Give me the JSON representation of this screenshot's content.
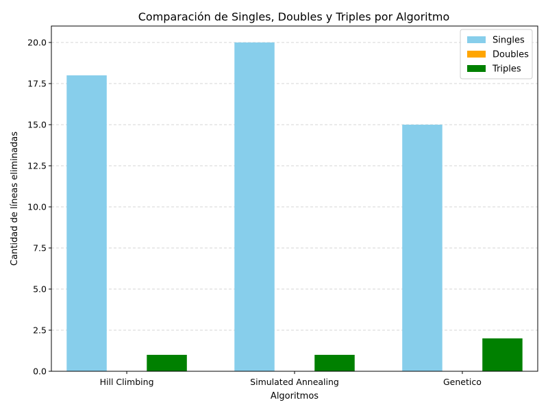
{
  "chart_data": {
    "type": "bar",
    "title": "Comparación de Singles, Doubles y Triples por Algoritmo",
    "xlabel": "Algoritmos",
    "ylabel": "Cantidad de líneas eliminadas",
    "categories": [
      "Hill Climbing",
      "Simulated Annealing",
      "Genetico"
    ],
    "series": [
      {
        "name": "Singles",
        "values": [
          18,
          20,
          15
        ],
        "color": "#87ceeb"
      },
      {
        "name": "Doubles",
        "values": [
          0,
          0,
          0
        ],
        "color": "#ffa500"
      },
      {
        "name": "Triples",
        "values": [
          1,
          1,
          2
        ],
        "color": "#008000"
      }
    ],
    "ylim": [
      0,
      21
    ],
    "yticks": [
      0.0,
      2.5,
      5.0,
      7.5,
      10.0,
      12.5,
      15.0,
      17.5,
      20.0
    ],
    "ytick_labels": [
      "0.0",
      "2.5",
      "5.0",
      "7.5",
      "10.0",
      "12.5",
      "15.0",
      "17.5",
      "20.0"
    ],
    "grid": "y-dashed",
    "legend_position": "top-right"
  }
}
